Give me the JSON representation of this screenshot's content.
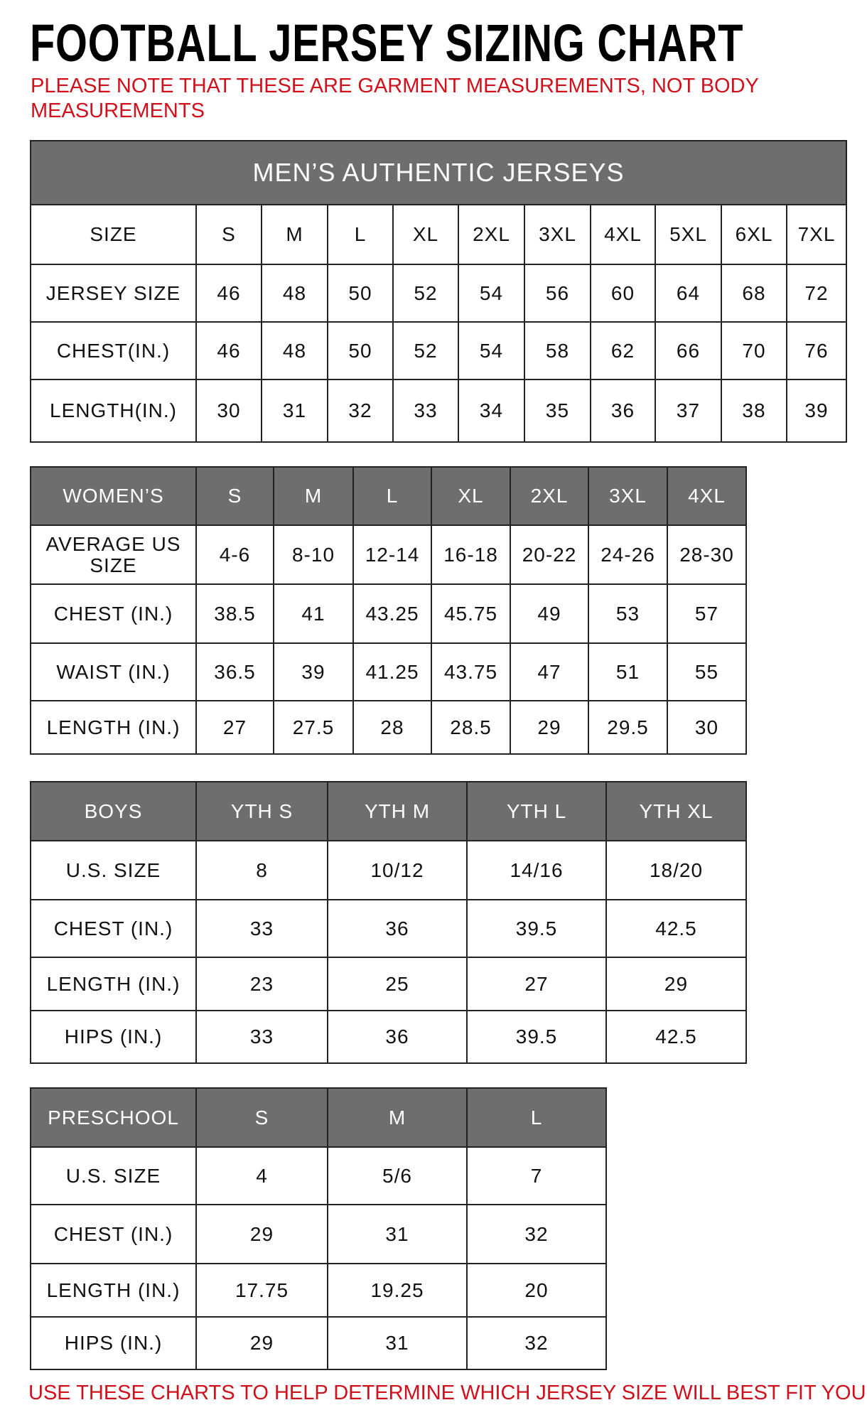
{
  "title": "FOOTBALL JERSEY SIZING CHART",
  "note": "PLEASE NOTE THAT THESE ARE GARMENT MEASUREMENTS, NOT BODY MEASUREMENTS",
  "footer": "USE THESE CHARTS TO HELP DETERMINE WHICH JERSEY SIZE WILL BEST FIT YOU.",
  "colors": {
    "header_bg": "#6e6e6e",
    "accent_red": "#d0101b"
  },
  "tables": [
    {
      "id": "mens",
      "caption": "MEN’S AUTHENTIC JERSEYS",
      "header": [
        "SIZE",
        "S",
        "M",
        "L",
        "XL",
        "2XL",
        "3XL",
        "4XL",
        "5XL",
        "6XL",
        "7XL"
      ],
      "header_style": "plain",
      "rows": [
        [
          "JERSEY SIZE",
          "46",
          "48",
          "50",
          "52",
          "54",
          "56",
          "60",
          "64",
          "68",
          "72"
        ],
        [
          "CHEST(IN.)",
          "46",
          "48",
          "50",
          "52",
          "54",
          "58",
          "62",
          "66",
          "70",
          "76"
        ],
        [
          "LENGTH(IN.)",
          "30",
          "31",
          "32",
          "33",
          "34",
          "35",
          "36",
          "37",
          "38",
          "39"
        ]
      ]
    },
    {
      "id": "womens",
      "header": [
        "WOMEN’S",
        "S",
        "M",
        "L",
        "XL",
        "2XL",
        "3XL",
        "4XL"
      ],
      "header_style": "grey",
      "rows": [
        [
          "AVERAGE US SIZE",
          "4-6",
          "8-10",
          "12-14",
          "16-18",
          "20-22",
          "24-26",
          "28-30"
        ],
        [
          "CHEST (IN.)",
          "38.5",
          "41",
          "43.25",
          "45.75",
          "49",
          "53",
          "57"
        ],
        [
          "WAIST (IN.)",
          "36.5",
          "39",
          "41.25",
          "43.75",
          "47",
          "51",
          "55"
        ],
        [
          "LENGTH (IN.)",
          "27",
          "27.5",
          "28",
          "28.5",
          "29",
          "29.5",
          "30"
        ]
      ]
    },
    {
      "id": "boys",
      "header": [
        "BOYS",
        "YTH S",
        "YTH M",
        "YTH L",
        "YTH XL"
      ],
      "header_style": "grey",
      "rows": [
        [
          "U.S. SIZE",
          "8",
          "10/12",
          "14/16",
          "18/20"
        ],
        [
          "CHEST (IN.)",
          "33",
          "36",
          "39.5",
          "42.5"
        ],
        [
          "LENGTH (IN.)",
          "23",
          "25",
          "27",
          "29"
        ],
        [
          "HIPS (IN.)",
          "33",
          "36",
          "39.5",
          "42.5"
        ]
      ]
    },
    {
      "id": "preschool",
      "header": [
        "PRESCHOOL",
        "S",
        "M",
        "L"
      ],
      "header_style": "grey",
      "rows": [
        [
          "U.S. SIZE",
          "4",
          "5/6",
          "7"
        ],
        [
          "CHEST (IN.)",
          "29",
          "31",
          "32"
        ],
        [
          "LENGTH (IN.)",
          "17.75",
          "19.25",
          "20"
        ],
        [
          "HIPS (IN.)",
          "29",
          "31",
          "32"
        ]
      ]
    }
  ]
}
